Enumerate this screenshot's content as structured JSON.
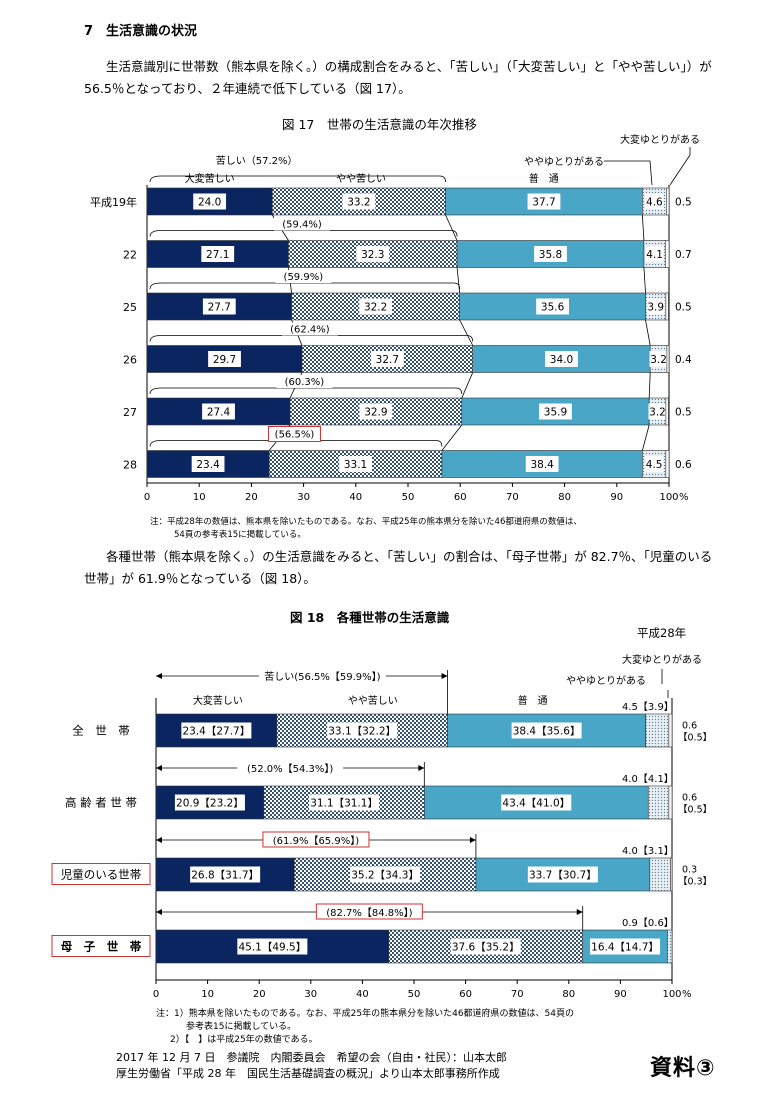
{
  "section_title": "7　生活意識の状況",
  "paragraph1": "生活意識別に世帯数（熊本県を除く。）の構成割合をみると、「苦しい」（「大変苦しい」と「やや苦しい」）が 56.5％となっており、２年連続で低下している（図 17）。",
  "paragraph2": "各種世帯（熊本県を除く。）の生活意識をみると、「苦しい」の割合は、「母子世帯」が 82.7％、「児童のいる世帯」が 61.9％となっている（図 18）。",
  "fig17": {
    "title": "図 17　世帯の生活意識の年次推移",
    "note1": "注：平成28年の数値は、熊本県を除いたものである。なお、平成25年の熊本県分を除いた46都道府県の数値は、",
    "note2": "54頁の参考表15に掲載している。",
    "pct_symbol": "%"
  },
  "fig18": {
    "title": "図 18　各種世帯の生活意識",
    "year": "平成28年",
    "note1": "注：1）熊本県を除いたものである。なお、平成25年の熊本県分を除いた46都道府県の数値は、54頁の",
    "note2": "参考表15に掲載している。",
    "note3": "2）【　】は平成25年の数値である。",
    "pct_symbol": "%"
  },
  "footer1": "2017 年 12 月 7 日　参議院　内閣委員会　希望の会（自由・社民）：山本太郎",
  "footer2": "厚生労働省「平成 28 年　国民生活基礎調査の概況」より山本太郎事務所作成",
  "shiryo": "資料③",
  "colors": {
    "very_hard": "#0a2560",
    "hard": "#4c6a8c",
    "normal": "#4aa6c6",
    "comfortable": "#ccdde8",
    "red": "#d23232"
  },
  "chart_data": [
    {
      "type": "bar",
      "orientation": "horizontal",
      "stacked": true,
      "title": "図 17　世帯の生活意識の年次推移",
      "categories": [
        "平成19年",
        "22",
        "25",
        "26",
        "27",
        "28"
      ],
      "series": [
        {
          "name": "大変苦しい",
          "values": [
            24.0,
            27.1,
            27.7,
            29.7,
            27.4,
            23.4
          ],
          "labels": [
            "24.0",
            "27.1",
            "27.7",
            "29.7",
            "27.4",
            "23.4"
          ]
        },
        {
          "name": "やや苦しい",
          "values": [
            33.2,
            32.3,
            32.2,
            32.7,
            32.9,
            33.1
          ],
          "labels": [
            "33.2",
            "32.3",
            "32.2",
            "32.7",
            "32.9",
            "33.1"
          ]
        },
        {
          "name": "普　通",
          "values": [
            37.7,
            35.8,
            35.6,
            34.0,
            35.9,
            38.4
          ],
          "labels": [
            "37.7",
            "35.8",
            "35.6",
            "34.0",
            "35.9",
            "38.4"
          ]
        },
        {
          "name": "ややゆとりがある",
          "values": [
            4.6,
            4.1,
            3.9,
            3.2,
            3.2,
            4.5
          ],
          "labels": [
            "4.6",
            "4.1",
            "3.9",
            "3.2",
            "3.2",
            "4.5"
          ]
        },
        {
          "name": "大変ゆとりがある",
          "values": [
            0.5,
            0.7,
            0.5,
            0.4,
            0.5,
            0.6
          ],
          "labels": [
            "0.5",
            "0.7",
            "0.5",
            "0.4",
            "0.5",
            "0.6"
          ]
        }
      ],
      "hard_total_labels": [
        "苦しい（57.2%）",
        "(59.4%)",
        "(59.9%)",
        "(62.4%)",
        "(60.3%)",
        "(56.5%)"
      ],
      "highlighted_total_index": 5,
      "xlim": [
        0,
        100
      ],
      "xticks": [
        "0",
        "10",
        "20",
        "30",
        "40",
        "50",
        "60",
        "70",
        "80",
        "90",
        "100"
      ],
      "xunit": "%",
      "legend_labels": {
        "very_hard": "大変苦しい",
        "hard": "やや苦しい",
        "normal": "普　通",
        "some_comfort": "ややゆとりがある",
        "very_comfort": "大変ゆとりがある"
      }
    },
    {
      "type": "bar",
      "orientation": "horizontal",
      "stacked": true,
      "title": "図 18　各種世帯の生活意識",
      "categories": [
        "全　世　帯",
        "高 齢 者 世 帯",
        "児童のいる世帯",
        "母　子　世　帯"
      ],
      "highlighted_categories": [
        2,
        3
      ],
      "series": [
        {
          "name": "大変苦しい",
          "values": [
            23.4,
            20.9,
            26.8,
            45.1
          ],
          "labels": [
            "23.4【27.7】",
            "20.9【23.2】",
            "26.8【31.7】",
            "45.1【49.5】"
          ]
        },
        {
          "name": "やや苦しい",
          "values": [
            33.1,
            31.1,
            35.2,
            37.6
          ],
          "labels": [
            "33.1【32.2】",
            "31.1【31.1】",
            "35.2【34.3】",
            "37.6【35.2】"
          ]
        },
        {
          "name": "普　通",
          "values": [
            38.4,
            43.4,
            33.7,
            16.4
          ],
          "labels": [
            "38.4【35.6】",
            "43.4【41.0】",
            "33.7【30.7】",
            "16.4【14.7】"
          ]
        },
        {
          "name": "ややゆとりがある",
          "values": [
            4.5,
            4.0,
            4.0,
            0.9
          ],
          "labels": [
            "4.5【3.9】",
            "4.0【4.1】",
            "4.0【3.1】",
            "0.9【0.6】"
          ]
        },
        {
          "name": "大変ゆとりがある",
          "values": [
            0.6,
            0.6,
            0.3,
            0.0
          ],
          "labels": [
            "0.6【0.5】",
            "0.6【0.5】",
            "0.3【0.3】",
            ""
          ]
        }
      ],
      "hard_total_labels": [
        "苦しい(56.5%【59.9%】)",
        "(52.0%【54.3%】)",
        "(61.9%【65.9%】)",
        "(82.7%【84.8%】)"
      ],
      "highlighted_totals": [
        2,
        3
      ],
      "xlim": [
        0,
        100
      ],
      "xticks": [
        "0",
        "10",
        "20",
        "30",
        "40",
        "50",
        "60",
        "70",
        "80",
        "90",
        "100"
      ],
      "xunit": "%",
      "legend_labels": {
        "very_hard": "大変苦しい",
        "hard": "やや苦しい",
        "normal": "普　通",
        "some_comfort": "ややゆとりがある",
        "very_comfort": "大変ゆとりがある"
      }
    }
  ]
}
